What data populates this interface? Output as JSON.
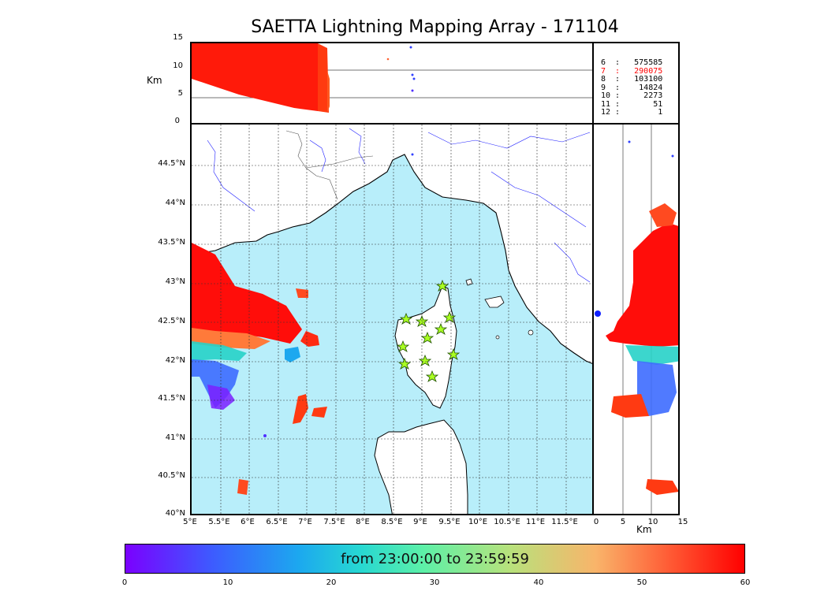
{
  "title": "SAETTA Lightning Mapping Array - 171104",
  "top_panel": {
    "ylabel": "Km",
    "y_ticks": [
      "15",
      "10",
      "5",
      "0"
    ]
  },
  "map": {
    "lat_ticks": [
      "44.5°N",
      "44°N",
      "43.5°N",
      "43°N",
      "42.5°N",
      "42°N",
      "41.5°N",
      "41°N",
      "40.5°N",
      "40°N"
    ],
    "lon_ticks": [
      "5°E",
      "5.5°E",
      "6°E",
      "6.5°E",
      "7°E",
      "7.5°E",
      "8°E",
      "8.5°E",
      "9°E",
      "9.5°E",
      "10°E",
      "10.5°E",
      "11°E",
      "11.5°E"
    ],
    "station_count": 11
  },
  "right_panel": {
    "xlabel": "Km",
    "x_ticks": [
      "0",
      "5",
      "10",
      "15"
    ]
  },
  "station_stats": [
    {
      "label": "6  :   575585",
      "color": "#000000"
    },
    {
      "label": "7  :   290075",
      "color": "#ff0000"
    },
    {
      "label": "8  :   103100",
      "color": "#000000"
    },
    {
      "label": "9  :    14824",
      "color": "#000000"
    },
    {
      "label": "10 :     2273",
      "color": "#000000"
    },
    {
      "label": "11 :       51",
      "color": "#000000"
    },
    {
      "label": "12 :        1",
      "color": "#000000"
    }
  ],
  "colorbar": {
    "text": "from 23:00:00 to 23:59:59",
    "ticks": [
      "0",
      "10",
      "20",
      "30",
      "40",
      "50",
      "60"
    ],
    "min": 0,
    "max": 60
  },
  "colors": {
    "sea": "#b8eefa",
    "land": "#ffffff",
    "rivers": "#2020ff",
    "stations": "#aaff22"
  }
}
